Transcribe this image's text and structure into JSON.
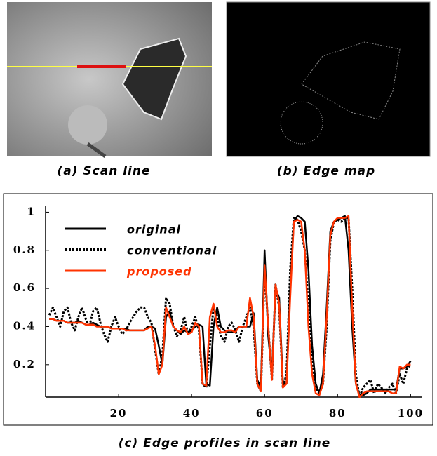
{
  "captions": [
    "(a) Scan line",
    "(b) Edge map",
    "(c) Edge profiles in scan line"
  ],
  "chart_data": {
    "type": "line",
    "x": [
      1,
      2,
      3,
      4,
      5,
      6,
      7,
      8,
      9,
      10,
      11,
      12,
      13,
      14,
      15,
      16,
      17,
      18,
      19,
      20,
      21,
      22,
      23,
      24,
      25,
      26,
      27,
      28,
      29,
      30,
      31,
      32,
      33,
      34,
      35,
      36,
      37,
      38,
      39,
      40,
      41,
      42,
      43,
      44,
      45,
      46,
      47,
      48,
      49,
      50,
      51,
      52,
      53,
      54,
      55,
      56,
      57,
      58,
      59,
      60,
      61,
      62,
      63,
      64,
      65,
      66,
      67,
      68,
      69,
      70,
      71,
      72,
      73,
      74,
      75,
      76,
      77,
      78,
      79,
      80,
      81,
      82,
      83,
      84,
      85,
      86,
      87,
      88,
      89,
      90,
      91,
      92,
      93,
      94,
      95,
      96,
      97,
      98,
      99,
      100
    ],
    "series": [
      {
        "name": "original",
        "color": "#000000",
        "dash": false,
        "values": [
          0.44,
          0.44,
          0.43,
          0.43,
          0.43,
          0.42,
          0.42,
          0.42,
          0.43,
          0.42,
          0.41,
          0.41,
          0.42,
          0.41,
          0.4,
          0.4,
          0.4,
          0.39,
          0.39,
          0.39,
          0.39,
          0.39,
          0.38,
          0.38,
          0.38,
          0.38,
          0.38,
          0.4,
          0.4,
          0.39,
          0.3,
          0.2,
          0.45,
          0.48,
          0.4,
          0.38,
          0.36,
          0.38,
          0.37,
          0.38,
          0.4,
          0.41,
          0.4,
          0.1,
          0.09,
          0.4,
          0.5,
          0.4,
          0.38,
          0.37,
          0.37,
          0.38,
          0.4,
          0.4,
          0.4,
          0.4,
          0.47,
          0.12,
          0.08,
          0.8,
          0.35,
          0.15,
          0.6,
          0.55,
          0.1,
          0.1,
          0.6,
          0.95,
          0.98,
          0.97,
          0.95,
          0.7,
          0.3,
          0.1,
          0.05,
          0.15,
          0.5,
          0.9,
          0.95,
          0.96,
          0.97,
          0.98,
          0.8,
          0.4,
          0.1,
          0.04,
          0.04,
          0.05,
          0.07,
          0.07,
          0.07,
          0.07,
          0.07,
          0.07,
          0.07,
          0.07,
          0.18,
          0.18,
          0.19,
          0.22
        ]
      },
      {
        "name": "conventional",
        "color": "#000000",
        "dash": true,
        "values": [
          0.46,
          0.5,
          0.45,
          0.4,
          0.48,
          0.5,
          0.42,
          0.38,
          0.45,
          0.5,
          0.44,
          0.4,
          0.48,
          0.5,
          0.42,
          0.36,
          0.32,
          0.4,
          0.45,
          0.4,
          0.36,
          0.38,
          0.42,
          0.45,
          0.48,
          0.5,
          0.5,
          0.45,
          0.42,
          0.28,
          0.15,
          0.25,
          0.55,
          0.52,
          0.4,
          0.35,
          0.38,
          0.45,
          0.36,
          0.4,
          0.45,
          0.38,
          0.1,
          0.08,
          0.3,
          0.5,
          0.45,
          0.35,
          0.32,
          0.4,
          0.42,
          0.38,
          0.32,
          0.4,
          0.45,
          0.5,
          0.4,
          0.1,
          0.06,
          0.7,
          0.4,
          0.12,
          0.62,
          0.5,
          0.08,
          0.15,
          0.7,
          0.97,
          0.96,
          0.9,
          0.8,
          0.5,
          0.2,
          0.08,
          0.05,
          0.1,
          0.4,
          0.85,
          0.95,
          0.96,
          0.95,
          0.97,
          0.97,
          0.6,
          0.15,
          0.03,
          0.08,
          0.1,
          0.12,
          0.05,
          0.1,
          0.08,
          0.05,
          0.08,
          0.1,
          0.05,
          0.15,
          0.1,
          0.18,
          0.2
        ]
      },
      {
        "name": "proposed",
        "color": "#ff3300",
        "dash": false,
        "values": [
          0.44,
          0.44,
          0.43,
          0.43,
          0.43,
          0.42,
          0.42,
          0.42,
          0.42,
          0.42,
          0.41,
          0.41,
          0.41,
          0.4,
          0.4,
          0.4,
          0.4,
          0.39,
          0.39,
          0.39,
          0.39,
          0.38,
          0.38,
          0.38,
          0.38,
          0.38,
          0.38,
          0.39,
          0.4,
          0.3,
          0.15,
          0.2,
          0.5,
          0.45,
          0.4,
          0.38,
          0.37,
          0.4,
          0.36,
          0.37,
          0.42,
          0.4,
          0.1,
          0.09,
          0.45,
          0.52,
          0.4,
          0.37,
          0.37,
          0.38,
          0.38,
          0.37,
          0.4,
          0.4,
          0.4,
          0.55,
          0.45,
          0.1,
          0.06,
          0.72,
          0.4,
          0.12,
          0.62,
          0.52,
          0.08,
          0.1,
          0.55,
          0.95,
          0.96,
          0.95,
          0.8,
          0.4,
          0.15,
          0.05,
          0.04,
          0.1,
          0.45,
          0.88,
          0.95,
          0.97,
          0.97,
          0.97,
          0.98,
          0.5,
          0.1,
          0.03,
          0.05,
          0.06,
          0.06,
          0.06,
          0.06,
          0.06,
          0.06,
          0.06,
          0.05,
          0.05,
          0.19,
          0.18,
          0.2,
          0.2
        ]
      }
    ],
    "xlim": [
      0,
      103
    ],
    "xticks": [
      20,
      40,
      60,
      80,
      100
    ],
    "ylim": [
      0.03,
      1.02
    ],
    "yticks": [
      0.2,
      0.4,
      0.6,
      0.8,
      1
    ],
    "grid": false,
    "legend": "top-left"
  }
}
